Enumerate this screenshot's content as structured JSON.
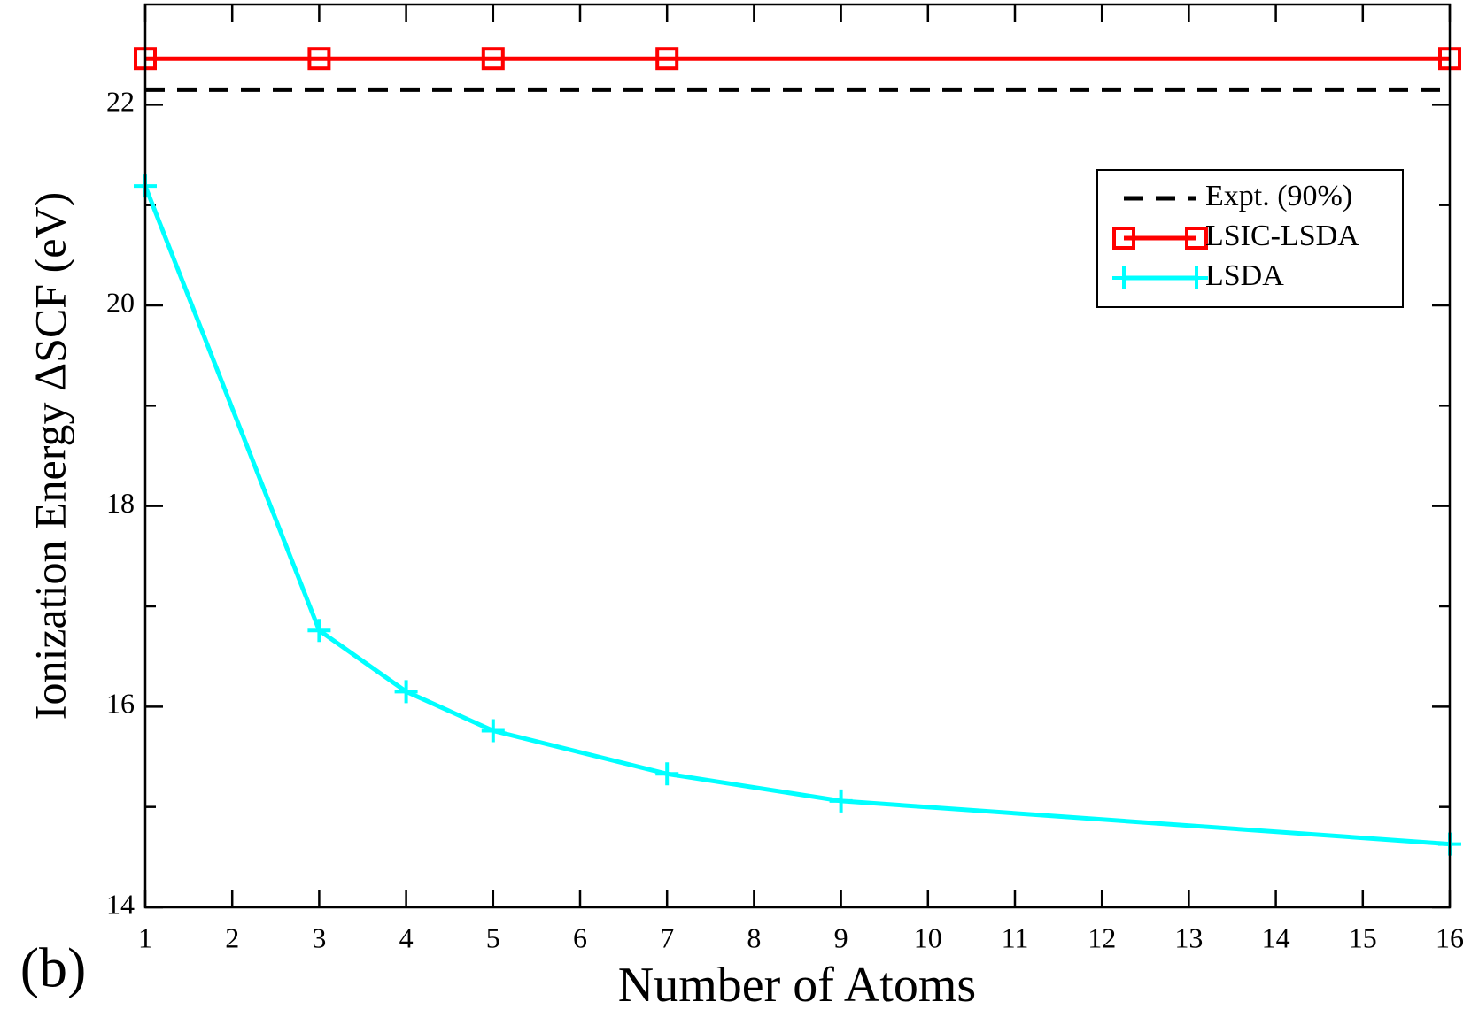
{
  "chart_data": {
    "type": "line",
    "panel_label": "(b)",
    "x_label": "Number of Atoms",
    "y_label": "Ionization Energy ΔSCF (eV)",
    "xlim": [
      1,
      16
    ],
    "xticks": [
      1,
      2,
      3,
      4,
      5,
      6,
      7,
      8,
      9,
      10,
      11,
      12,
      13,
      14,
      15,
      16
    ],
    "ylim": [
      14,
      23
    ],
    "yticks": [
      14,
      16,
      18,
      20,
      22
    ],
    "yticks_minor": [
      15,
      17,
      19,
      21
    ],
    "legend": "upper right",
    "series": [
      {
        "name": "Expt. (90%)",
        "color": "#000000",
        "dash": true,
        "x": [
          1,
          16
        ],
        "values": [
          22.15,
          22.15
        ]
      },
      {
        "name": "LSIC-LSDA",
        "color": "#ff0000",
        "marker": "square",
        "x": [
          1,
          3,
          5,
          7,
          16
        ],
        "values": [
          22.46,
          22.46,
          22.46,
          22.46,
          22.46
        ]
      },
      {
        "name": "LSDA",
        "color": "#00ffff",
        "marker": "plus",
        "x": [
          1,
          3,
          4,
          5,
          7,
          9,
          16
        ],
        "values": [
          21.19,
          16.76,
          16.15,
          15.76,
          15.33,
          15.06,
          14.63
        ]
      }
    ]
  }
}
